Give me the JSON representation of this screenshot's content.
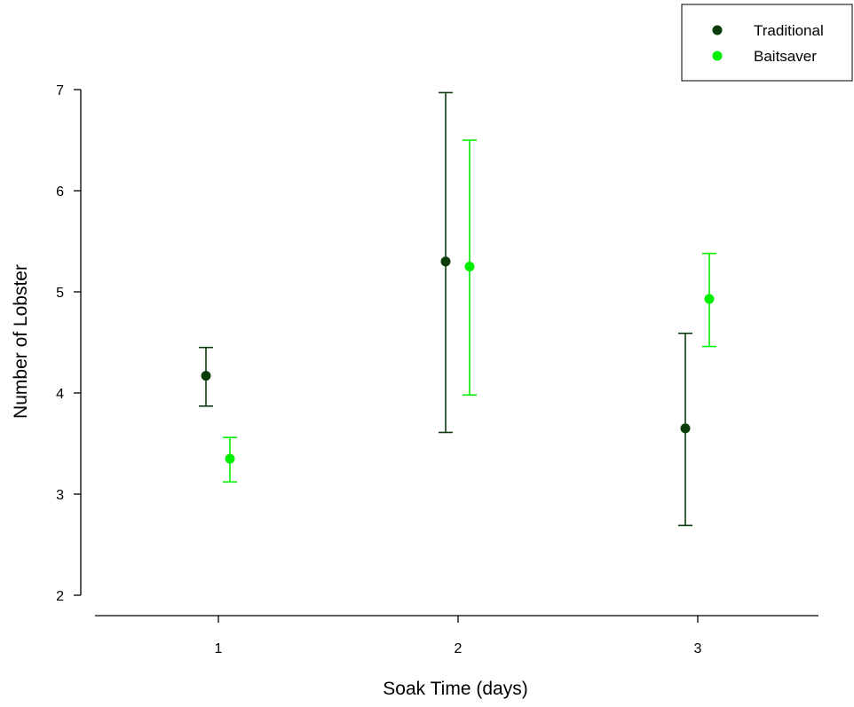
{
  "chart_data": {
    "type": "scatter",
    "xlabel": "Soak Time (days)",
    "ylabel": "Number of Lobster",
    "x_categories": [
      "1",
      "2",
      "3"
    ],
    "y_ticks": [
      "2",
      "3",
      "4",
      "5",
      "6",
      "7"
    ],
    "ylim": [
      2,
      7
    ],
    "grid": false,
    "legend_position": "top-right",
    "series": [
      {
        "name": "Traditional",
        "color": "#0b3d0b",
        "points": [
          {
            "x": "1",
            "y": 4.17,
            "err_low": 3.87,
            "err_high": 4.45
          },
          {
            "x": "2",
            "y": 5.3,
            "err_low": 3.61,
            "err_high": 6.97
          },
          {
            "x": "3",
            "y": 3.65,
            "err_low": 2.69,
            "err_high": 4.59
          }
        ]
      },
      {
        "name": "Baitsaver",
        "color": "#00ee00",
        "points": [
          {
            "x": "1",
            "y": 3.35,
            "err_low": 3.12,
            "err_high": 3.56
          },
          {
            "x": "2",
            "y": 5.25,
            "err_low": 3.98,
            "err_high": 6.5
          },
          {
            "x": "3",
            "y": 4.93,
            "err_low": 4.46,
            "err_high": 5.38
          }
        ]
      }
    ]
  }
}
